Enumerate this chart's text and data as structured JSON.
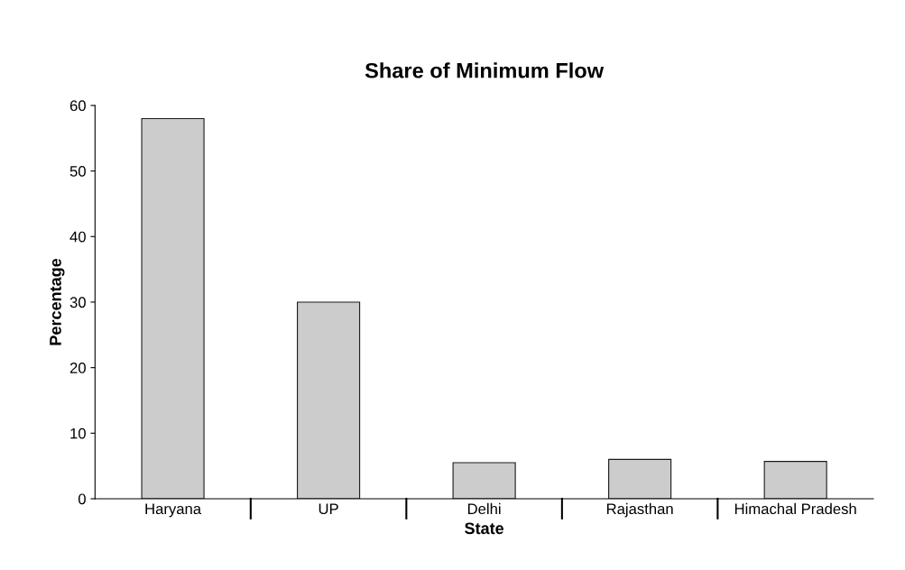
{
  "chart_data": {
    "type": "bar",
    "title": "Share of Minimum Flow",
    "xlabel": "State",
    "ylabel": "Percentage",
    "categories": [
      "Haryana",
      "UP",
      "Delhi",
      "Rajasthan",
      "Himachal Pradesh"
    ],
    "values": [
      58,
      30,
      5.5,
      6,
      5.7
    ],
    "color": "#cccccc",
    "ylim": [
      0,
      60
    ],
    "yticks": [
      0,
      10,
      20,
      30,
      40,
      50,
      60
    ],
    "grid": false,
    "legend": false
  }
}
